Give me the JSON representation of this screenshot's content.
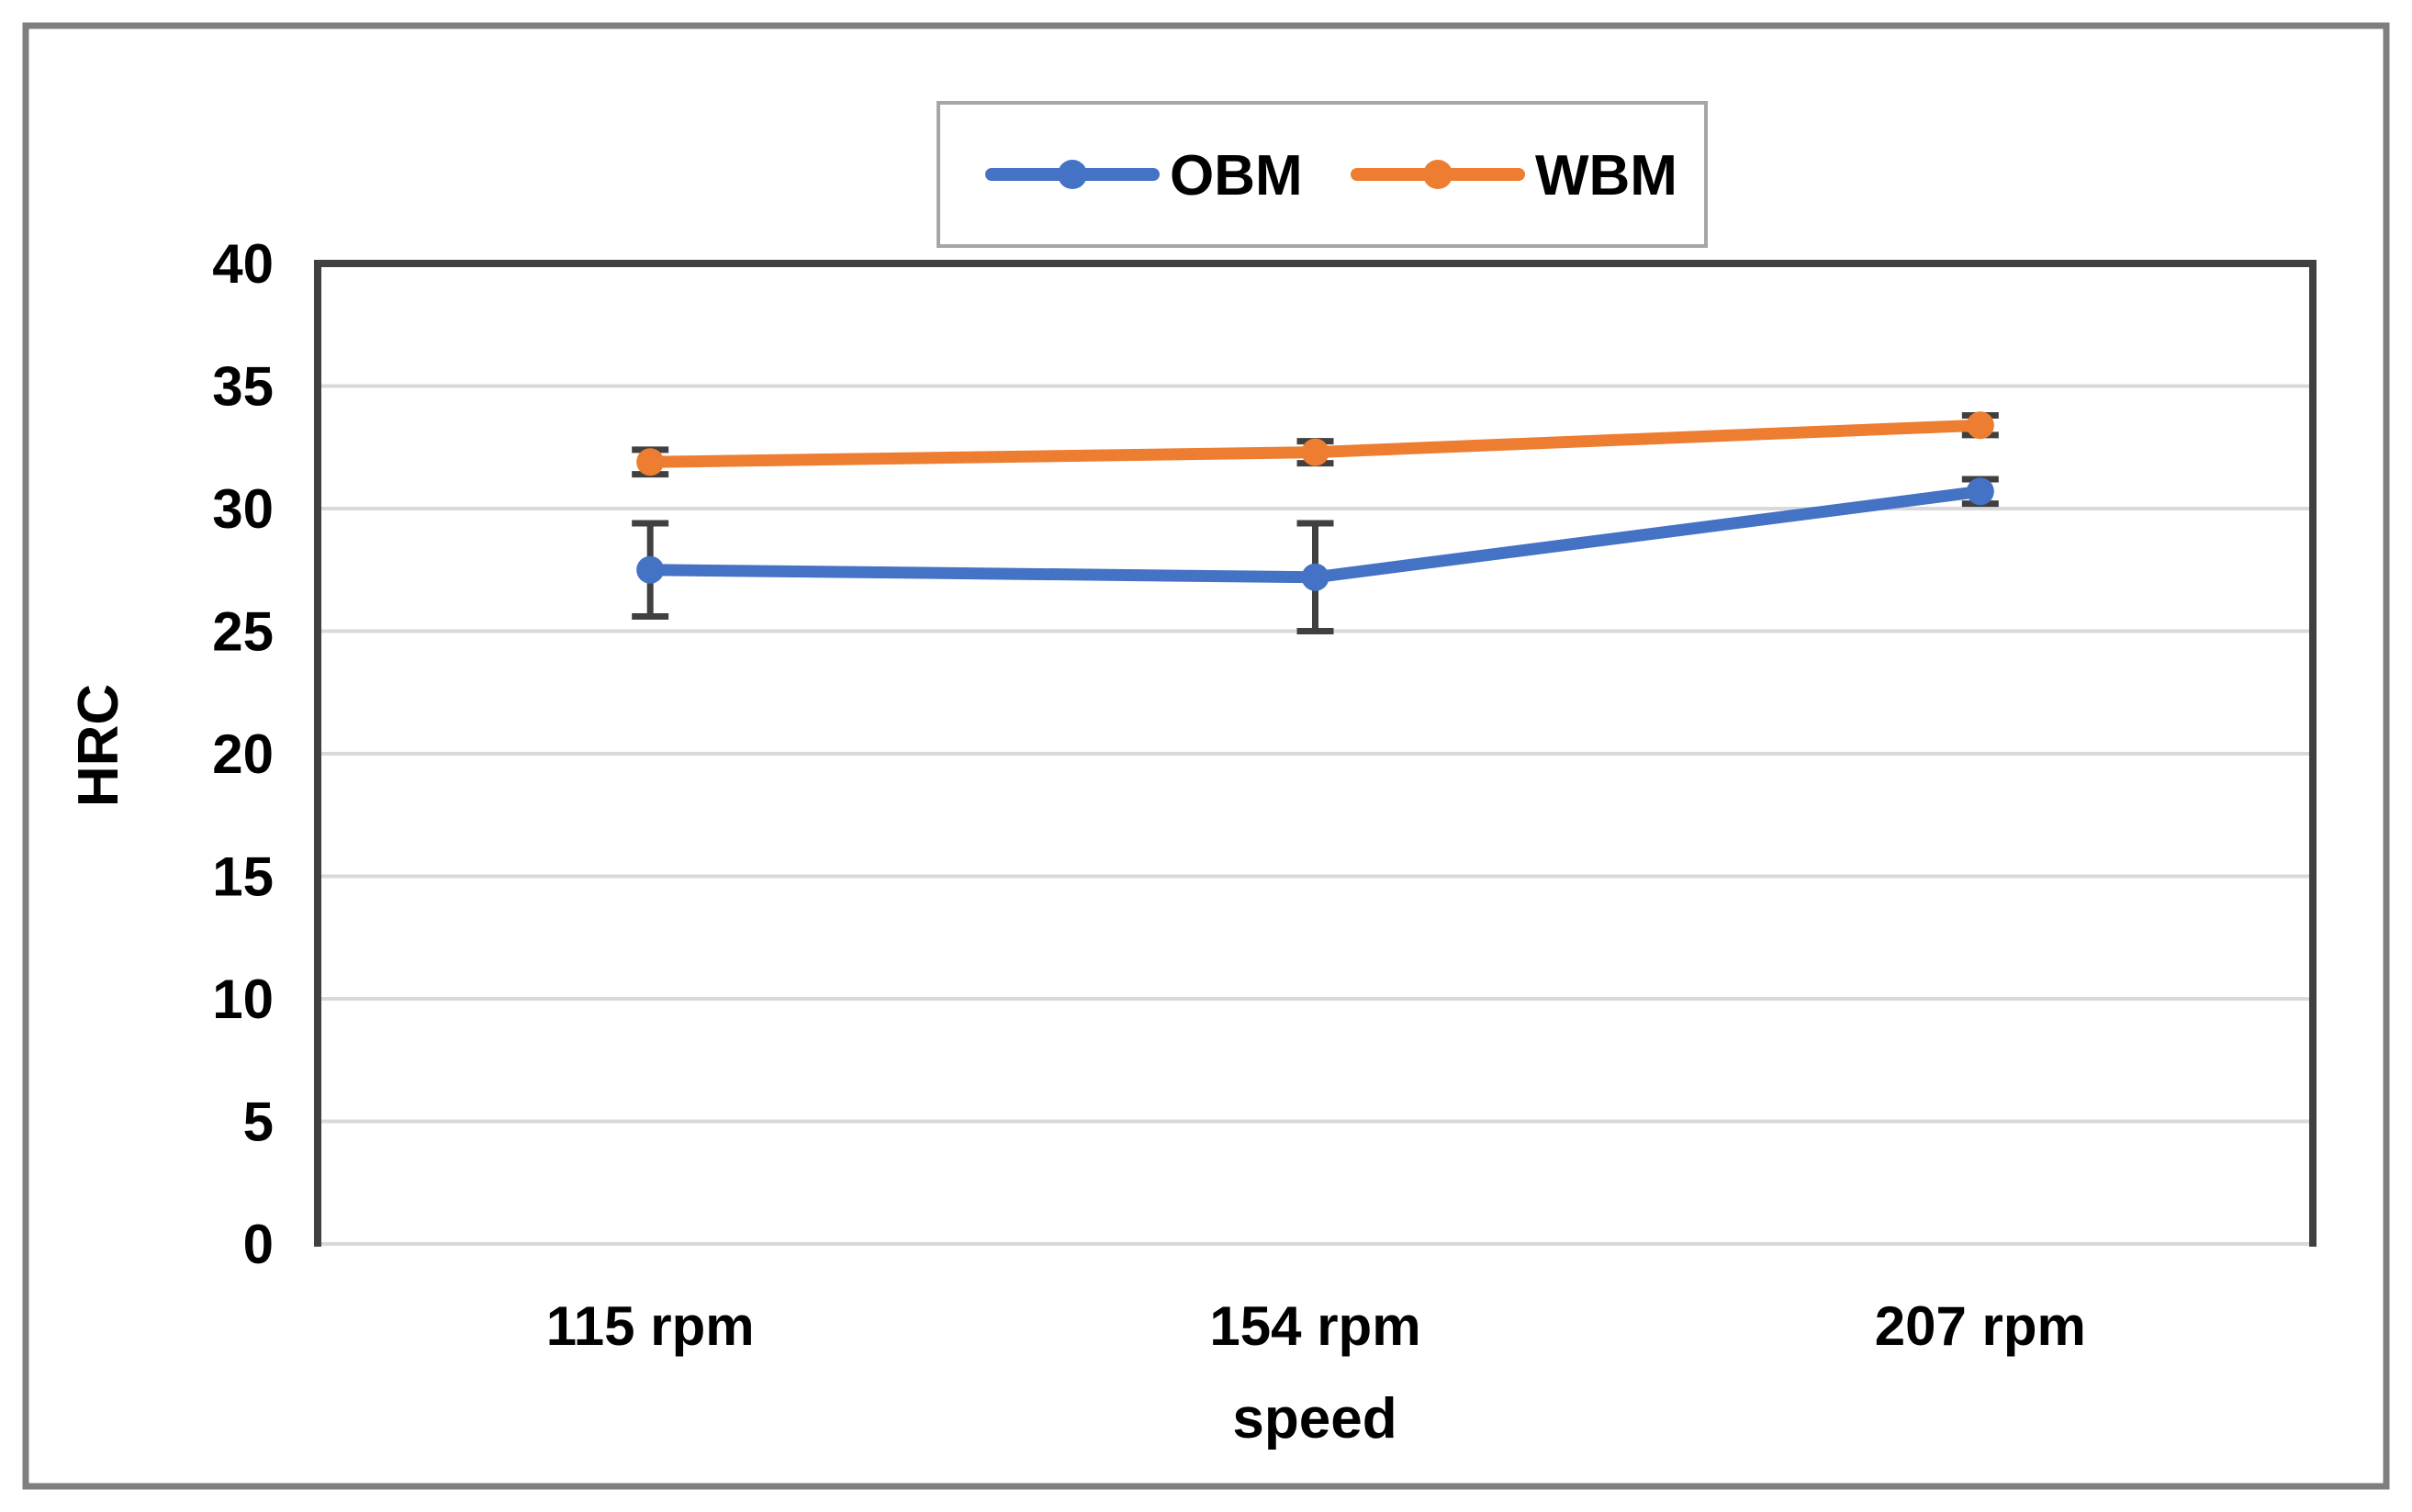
{
  "figure": {
    "background_color": "#ffffff",
    "outer_border_color": "#7f7f7f"
  },
  "legend": {
    "position": "top-center",
    "border_color": "#a6a6a6",
    "fill_color": "#ffffff",
    "items": [
      {
        "label": "OBM",
        "color": "#4472c4",
        "marker": "circle"
      },
      {
        "label": "WBM",
        "color": "#ed7d31",
        "marker": "circle"
      }
    ]
  },
  "chart_data": {
    "type": "line",
    "title": "",
    "xlabel": "speed",
    "ylabel": "HRC",
    "categories": [
      "115 rpm",
      "154 rpm",
      "207 rpm"
    ],
    "series": [
      {
        "name": "OBM",
        "color": "#4472c4",
        "values": [
          27.5,
          27.2,
          30.7
        ],
        "error_bars": [
          1.9,
          2.2,
          0.5
        ]
      },
      {
        "name": "WBM",
        "color": "#ed7d31",
        "values": [
          31.9,
          32.3,
          33.4
        ],
        "error_bars": [
          0.5,
          0.45,
          0.4
        ]
      }
    ],
    "ylim": [
      0,
      40
    ],
    "ytick_step": 5,
    "yticks": [
      0,
      5,
      10,
      15,
      20,
      25,
      30,
      35,
      40
    ],
    "grid": true,
    "gridline_color": "#d9d9d9",
    "plot_border_color": "#404040",
    "error_bar_color": "#404040",
    "text_color": "#000000",
    "legend_position": "top"
  }
}
